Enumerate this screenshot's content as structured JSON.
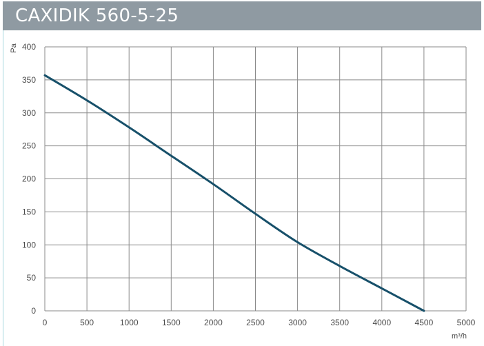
{
  "header": {
    "title": "CAXIDIK 560-5-25"
  },
  "chart_data": {
    "type": "line",
    "title": "CAXIDIK 560-5-25",
    "xlabel": "m³/h",
    "ylabel": "Pa",
    "xlim": [
      0,
      5000
    ],
    "ylim": [
      0,
      400
    ],
    "xticks": [
      0,
      500,
      1000,
      1500,
      2000,
      2500,
      3000,
      3500,
      4000,
      4500,
      5000
    ],
    "yticks": [
      0,
      50,
      100,
      150,
      200,
      250,
      300,
      350,
      400
    ],
    "grid": true,
    "colors": {
      "line": "#17506a",
      "grid": "#8a8a8a",
      "title_bar": "#8f9aa2"
    },
    "series": [
      {
        "x": [
          0,
          500,
          1000,
          1500,
          2000,
          2500,
          3000,
          3500,
          4000,
          4500
        ],
        "y": [
          357,
          319,
          278,
          235,
          192,
          147,
          104,
          68,
          34,
          0
        ]
      }
    ]
  }
}
